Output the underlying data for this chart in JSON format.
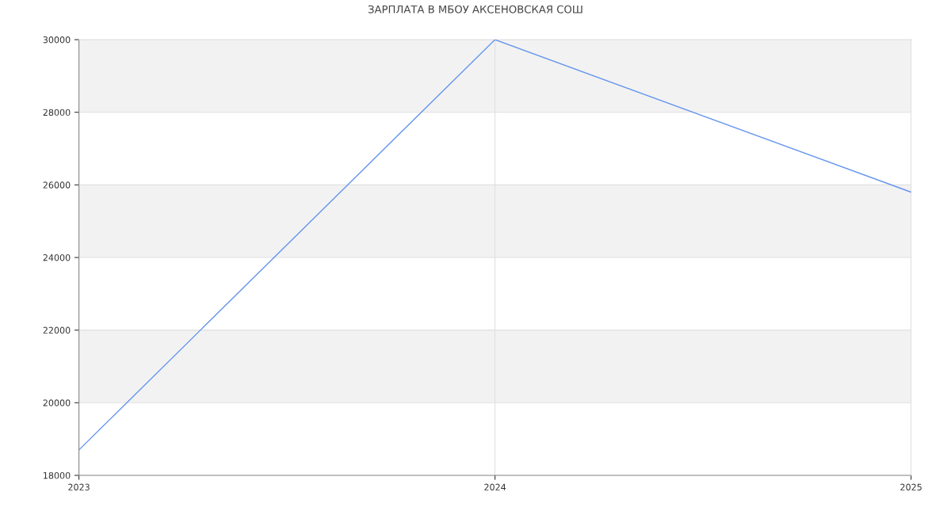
{
  "chart_data": {
    "type": "line",
    "title": "ЗАРПЛАТА В МБОУ АКСЕНОВСКАЯ СОШ",
    "x": [
      2023,
      2024,
      2025
    ],
    "series": [
      {
        "color": "#6495ed",
        "values": [
          18700,
          30000,
          25800
        ]
      }
    ],
    "xlim": [
      2023,
      2025
    ],
    "xticks": [
      2023,
      2024,
      2025
    ],
    "ylim": [
      18000,
      30000
    ],
    "yticks": [
      18000,
      20000,
      22000,
      24000,
      26000,
      28000,
      30000
    ],
    "bands": [
      {
        "axis": "y",
        "from": 20000,
        "to": 22000,
        "color": "#f2f2f2"
      },
      {
        "axis": "y",
        "from": 24000,
        "to": 26000,
        "color": "#f2f2f2"
      },
      {
        "axis": "y",
        "from": 28000,
        "to": 30000,
        "color": "#f2f2f2"
      }
    ],
    "grid": true,
    "marker": "none",
    "line_style": "solid",
    "legend": false
  }
}
